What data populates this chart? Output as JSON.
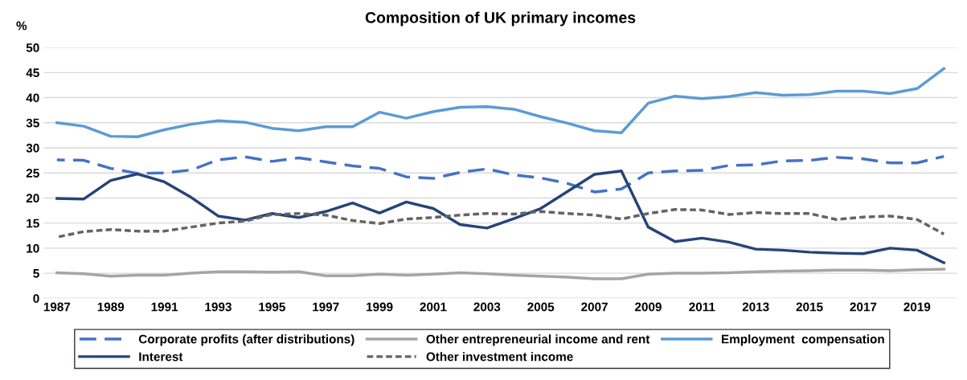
{
  "chart_data": {
    "type": "line",
    "title": "Composition of UK primary incomes",
    "ylabel": "%",
    "categories": [
      "1987",
      null,
      "1989",
      null,
      "1991",
      null,
      "1993",
      null,
      "1995",
      null,
      "1997",
      null,
      "1999",
      null,
      "2001",
      null,
      "2003",
      null,
      "2005",
      null,
      "2007",
      null,
      "2009",
      null,
      "2011",
      null,
      "2013",
      null,
      "2015",
      null,
      "2017",
      null,
      "2019",
      null
    ],
    "series": [
      {
        "name": "Corporate profits (after distributions)",
        "color": "#4472c4",
        "line_style": "dashed",
        "values": [
          27.6,
          27.5,
          25.9,
          24.9,
          25,
          25.6,
          27.6,
          28.2,
          27.3,
          28,
          27.2,
          26.4,
          25.9,
          24.2,
          23.9,
          25.1,
          25.8,
          24.6,
          24,
          22.9,
          21.2,
          21.8,
          25,
          25.4,
          25.5,
          26.5,
          26.6,
          27.4,
          27.5,
          28.1,
          27.8,
          27,
          27,
          28.3
        ]
      },
      {
        "name": "Other entrepreneurial income and rent",
        "color": "#a5a5a5",
        "line_style": "solid",
        "values": [
          5.1,
          4.9,
          4.4,
          4.6,
          4.6,
          5,
          5.3,
          5.3,
          5.2,
          5.3,
          4.5,
          4.5,
          4.8,
          4.6,
          4.8,
          5.1,
          4.9,
          4.6,
          4.4,
          4.2,
          3.9,
          3.9,
          4.8,
          5,
          5,
          5.1,
          5.3,
          5.4,
          5.5,
          5.6,
          5.6,
          5.5,
          5.7,
          5.8
        ]
      },
      {
        "name": "Employment  compensation",
        "color": "#5b9bd5",
        "line_style": "solid",
        "values": [
          35,
          34.3,
          32.3,
          32.2,
          33.6,
          34.7,
          35.4,
          35.1,
          33.9,
          33.4,
          34.2,
          34.2,
          37.1,
          35.9,
          37.2,
          38.1,
          38.2,
          37.7,
          36.2,
          34.9,
          33.4,
          33,
          38.9,
          40.3,
          39.8,
          40.2,
          41,
          40.5,
          40.6,
          41.3,
          41.3,
          40.8,
          41.8,
          45.8
        ]
      },
      {
        "name": "Interest",
        "color": "#264478",
        "line_style": "solid",
        "values": [
          19.9,
          19.8,
          23.5,
          24.8,
          23.2,
          20.1,
          16.4,
          15.6,
          16.9,
          16.1,
          17.3,
          19,
          17,
          19.2,
          17.9,
          14.7,
          14,
          15.9,
          17.9,
          21.3,
          24.7,
          25.4,
          14.2,
          11.3,
          12,
          11.2,
          9.8,
          9.6,
          9.2,
          9,
          8.9,
          10,
          9.6,
          7.1
        ]
      },
      {
        "name": "Other investment income",
        "color": "#636363",
        "line_style": "dotted",
        "values": [
          12.2,
          13.3,
          13.7,
          13.4,
          13.4,
          14.2,
          15,
          15.4,
          16.7,
          16.9,
          16.6,
          15.5,
          14.9,
          15.8,
          16.1,
          16.6,
          16.9,
          16.8,
          17.3,
          16.9,
          16.6,
          15.8,
          16.9,
          17.7,
          17.6,
          16.7,
          17.1,
          16.9,
          16.9,
          15.7,
          16.2,
          16.4,
          15.7,
          12.8
        ]
      }
    ],
    "ylim": [
      0,
      50
    ],
    "yticks": [
      0,
      5,
      10,
      15,
      20,
      25,
      30,
      35,
      40,
      45,
      50
    ],
    "grid": "y",
    "legend": "bottom",
    "marker": "none"
  }
}
